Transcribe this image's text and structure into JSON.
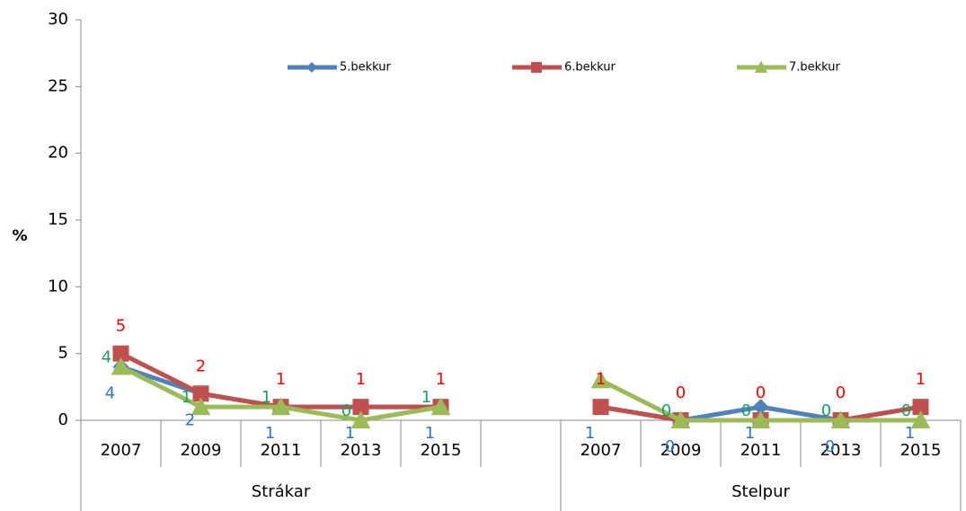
{
  "chart_data": {
    "type": "line",
    "y_label": "%",
    "categories": [
      "2007",
      "2009",
      "2011",
      "2013",
      "2015",
      null,
      "2007",
      "2009",
      "2011",
      "2013",
      "2015"
    ],
    "group_labels": [
      "Strákar",
      "Stelpur"
    ],
    "ylim": [
      0,
      30
    ],
    "yticks": [
      0,
      5,
      10,
      15,
      20,
      25,
      30
    ],
    "series": [
      {
        "name": "5.bekkur",
        "color": "#4f81bd",
        "label_color": "#2e75d0",
        "marker": "diamond",
        "values": [
          4,
          2,
          1,
          1,
          1,
          null,
          1,
          0,
          1,
          0,
          1
        ],
        "value_labels": [
          "4",
          "2",
          "1",
          "1",
          "1",
          null,
          "1",
          "0",
          "1",
          "0",
          "1"
        ]
      },
      {
        "name": "6.bekkur",
        "color": "#c0504d",
        "label_color": "#ff0000",
        "marker": "square",
        "values": [
          5,
          2,
          1,
          1,
          1,
          null,
          1,
          0,
          0,
          0,
          1
        ],
        "value_labels": [
          "5",
          "2",
          "1",
          "1",
          "1",
          null,
          "1",
          "0",
          "0",
          "0",
          "1"
        ]
      },
      {
        "name": "7.bekkur",
        "color": "#9bbb59",
        "label_color": "#1aa060",
        "marker": "triangle",
        "values": [
          4,
          1,
          1,
          0,
          1,
          null,
          3,
          0,
          0,
          0,
          0
        ],
        "value_labels": [
          "4",
          "1",
          "1",
          "0",
          "1",
          null,
          null,
          "0",
          "0",
          "0",
          "0"
        ]
      }
    ]
  }
}
